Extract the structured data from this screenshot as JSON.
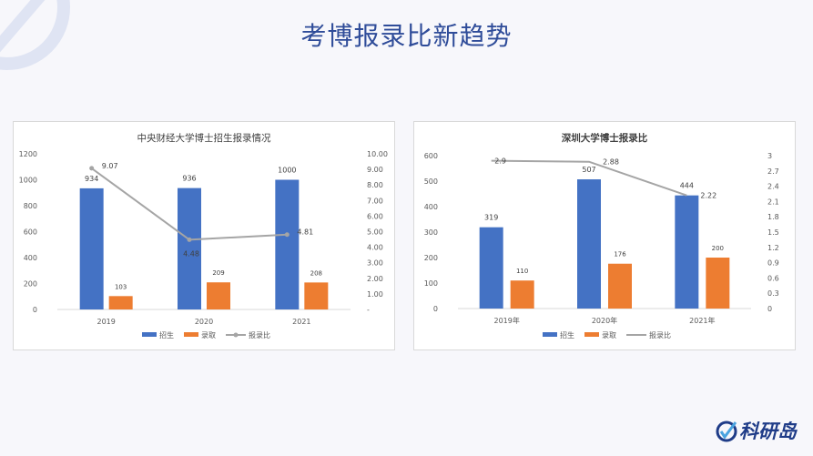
{
  "slide": {
    "title": "考博报录比新趋势"
  },
  "logo": {
    "text": "科研岛"
  },
  "chart_data": [
    {
      "type": "bar",
      "title": "中央财经大学博士招生报录情况",
      "categories": [
        "2019",
        "2020",
        "2021"
      ],
      "series": [
        {
          "name": "招生",
          "type": "bar",
          "axis": "left",
          "color": "#4472c4",
          "values": [
            934,
            936,
            1000
          ]
        },
        {
          "name": "录取",
          "type": "bar",
          "axis": "left",
          "color": "#ed7d31",
          "values": [
            103,
            209,
            208
          ]
        },
        {
          "name": "报录比",
          "type": "line",
          "axis": "right",
          "color": "#a5a5a5",
          "values": [
            9.07,
            4.48,
            4.81
          ],
          "markers": true
        }
      ],
      "ylim": [
        0,
        1200
      ],
      "y_ticks": [
        "0",
        "200",
        "400",
        "600",
        "800",
        "1000",
        "1200"
      ],
      "y2lim": [
        0,
        10
      ],
      "y2_ticks": [
        "-",
        "1.00",
        "2.00",
        "3.00",
        "4.00",
        "5.00",
        "6.00",
        "7.00",
        "8.00",
        "9.00",
        "10.00"
      ],
      "data_labels": {
        "招生": [
          "934",
          "936",
          "1000"
        ],
        "录取": [
          "103",
          "209",
          "208"
        ],
        "报录比": [
          "9.07",
          "4.48",
          "4.81"
        ]
      },
      "grid": false,
      "legend": "bottom"
    },
    {
      "type": "bar",
      "title": "深圳大学博士报录比",
      "categories": [
        "2019年",
        "2020年",
        "2021年"
      ],
      "series": [
        {
          "name": "招生",
          "type": "bar",
          "axis": "left",
          "color": "#4472c4",
          "values": [
            319,
            507,
            444
          ]
        },
        {
          "name": "录取",
          "type": "bar",
          "axis": "left",
          "color": "#ed7d31",
          "values": [
            110,
            176,
            200
          ]
        },
        {
          "name": "报录比",
          "type": "line",
          "axis": "right",
          "color": "#a5a5a5",
          "values": [
            2.9,
            2.88,
            2.22
          ],
          "markers": false
        }
      ],
      "ylim": [
        0,
        600
      ],
      "y_ticks": [
        "0",
        "100",
        "200",
        "300",
        "400",
        "500",
        "600"
      ],
      "y2lim": [
        0,
        3
      ],
      "y2_ticks": [
        "0",
        "0.3",
        "0.6",
        "0.9",
        "1.2",
        "1.5",
        "1.8",
        "2.1",
        "2.4",
        "2.7",
        "3"
      ],
      "data_labels": {
        "招生": [
          "319",
          "507",
          "444"
        ],
        "录取": [
          "110",
          "176",
          "200"
        ],
        "报录比": [
          "2.9",
          "2.88",
          "2.22"
        ]
      },
      "grid": false,
      "legend": "bottom"
    }
  ]
}
